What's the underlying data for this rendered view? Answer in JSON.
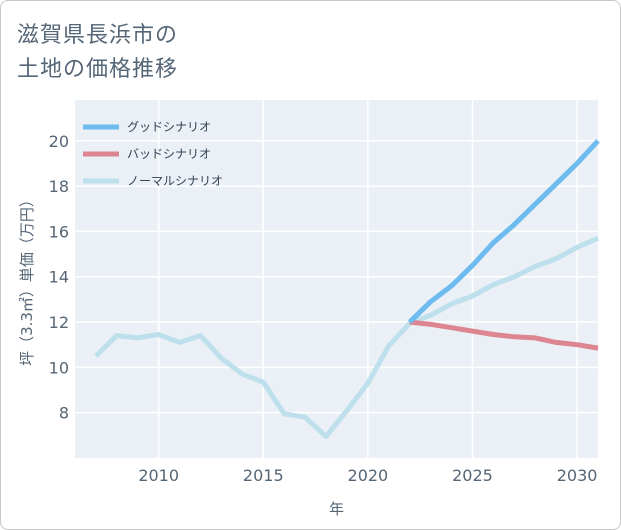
{
  "title": {
    "line1": "滋賀県長浜市の",
    "line2": "土地の価格推移"
  },
  "colors": {
    "good": "#6dbbef",
    "bad": "#dd8590",
    "normal": "#bde0ec",
    "grid": "#d8e2ea",
    "plot_bg": "#eaf0f5",
    "tick": "#556677"
  },
  "chart_data": {
    "type": "line",
    "xlabel": "年",
    "ylabel": "坪（3.3㎡）単価（万円）",
    "xlim": [
      2006,
      2031
    ],
    "ylim": [
      6,
      21.8
    ],
    "xticks": [
      2010,
      2015,
      2020,
      2025,
      2030
    ],
    "yticks": [
      8,
      10,
      12,
      14,
      16,
      18,
      20
    ],
    "grid": true,
    "legend_position": "top-left",
    "series": [
      {
        "name": "グッドシナリオ",
        "color_key": "good",
        "x": [
          2022,
          2023,
          2024,
          2025,
          2026,
          2027,
          2028,
          2029,
          2030,
          2031
        ],
        "y": [
          12.0,
          12.9,
          13.6,
          14.5,
          15.5,
          16.3,
          17.2,
          18.1,
          19.0,
          20.0
        ]
      },
      {
        "name": "バッドシナリオ",
        "color_key": "bad",
        "x": [
          2022,
          2023,
          2024,
          2025,
          2026,
          2027,
          2028,
          2029,
          2030,
          2031
        ],
        "y": [
          12.0,
          11.9,
          11.75,
          11.6,
          11.45,
          11.35,
          11.3,
          11.1,
          11.0,
          10.85
        ]
      },
      {
        "name": "ノーマルシナリオ",
        "color_key": "normal",
        "x": [
          2007,
          2008,
          2009,
          2010,
          2011,
          2012,
          2013,
          2014,
          2015,
          2016,
          2017,
          2018,
          2019,
          2020,
          2021,
          2022,
          2023,
          2024,
          2025,
          2026,
          2027,
          2028,
          2029,
          2030,
          2031
        ],
        "y": [
          10.5,
          11.4,
          11.3,
          11.45,
          11.1,
          11.4,
          10.4,
          9.7,
          9.35,
          7.95,
          7.8,
          6.95,
          8.1,
          9.3,
          10.95,
          11.95,
          12.3,
          12.8,
          13.15,
          13.65,
          14.0,
          14.45,
          14.8,
          15.3,
          15.7
        ]
      }
    ]
  }
}
